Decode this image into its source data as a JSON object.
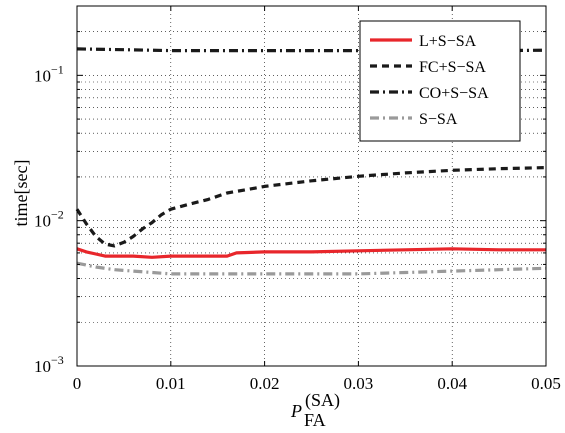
{
  "chart_data": {
    "type": "line",
    "xlabel": "P",
    "xlabel_subscript": "FA",
    "xlabel_superscript": "(SA)",
    "ylabel": "time[sec]",
    "xlim": [
      0,
      0.05
    ],
    "ylim": [
      0.001,
      0.3
    ],
    "yscale": "log",
    "grid": true,
    "legend_position": "top-right",
    "x_ticks": [
      "0",
      "0.01",
      "0.02",
      "0.03",
      "0.04",
      "0.05"
    ],
    "y_ticks": [
      {
        "base": "10",
        "exp": "−3",
        "value": 0.001
      },
      {
        "base": "10",
        "exp": "−2",
        "value": 0.01
      },
      {
        "base": "10",
        "exp": "−1",
        "value": 0.1
      }
    ],
    "series": [
      {
        "name": "L+S−SA",
        "color": "#e8262b",
        "style": "solid",
        "x": [
          0,
          0.001,
          0.002,
          0.003,
          0.004,
          0.006,
          0.008,
          0.01,
          0.012,
          0.014,
          0.016,
          0.017,
          0.02,
          0.025,
          0.03,
          0.035,
          0.04,
          0.045,
          0.05
        ],
        "y": [
          0.0064,
          0.0061,
          0.0059,
          0.0057,
          0.0057,
          0.0057,
          0.0056,
          0.0057,
          0.0057,
          0.0057,
          0.0057,
          0.006,
          0.0061,
          0.0061,
          0.0062,
          0.0063,
          0.0064,
          0.0063,
          0.0063
        ]
      },
      {
        "name": "FC+S−SA",
        "color": "#1a1a1a",
        "style": "dashed",
        "x": [
          0,
          0.001,
          0.002,
          0.003,
          0.004,
          0.005,
          0.006,
          0.007,
          0.008,
          0.009,
          0.01,
          0.012,
          0.014,
          0.016,
          0.018,
          0.02,
          0.025,
          0.03,
          0.035,
          0.04,
          0.045,
          0.05
        ],
        "y": [
          0.012,
          0.0095,
          0.0078,
          0.0069,
          0.0067,
          0.0071,
          0.0078,
          0.0088,
          0.0097,
          0.011,
          0.012,
          0.013,
          0.014,
          0.0155,
          0.0163,
          0.0172,
          0.0188,
          0.0202,
          0.0213,
          0.0222,
          0.0228,
          0.0232
        ]
      },
      {
        "name": "CO+S−SA",
        "color": "#1a1a1a",
        "style": "dashdot",
        "x": [
          0,
          0.005,
          0.01,
          0.015,
          0.02,
          0.025,
          0.03,
          0.035,
          0.04,
          0.045,
          0.05
        ],
        "y": [
          0.152,
          0.15,
          0.148,
          0.148,
          0.148,
          0.148,
          0.148,
          0.148,
          0.148,
          0.148,
          0.149
        ]
      },
      {
        "name": "S−SA",
        "color": "#9a9a9a",
        "style": "dashdot",
        "x": [
          0,
          0.002,
          0.004,
          0.006,
          0.008,
          0.01,
          0.012,
          0.015,
          0.02,
          0.025,
          0.03,
          0.035,
          0.04,
          0.045,
          0.05
        ],
        "y": [
          0.0051,
          0.0048,
          0.0046,
          0.0045,
          0.0044,
          0.0043,
          0.0043,
          0.0043,
          0.0043,
          0.0043,
          0.0043,
          0.0044,
          0.0045,
          0.0046,
          0.0047
        ]
      }
    ]
  }
}
